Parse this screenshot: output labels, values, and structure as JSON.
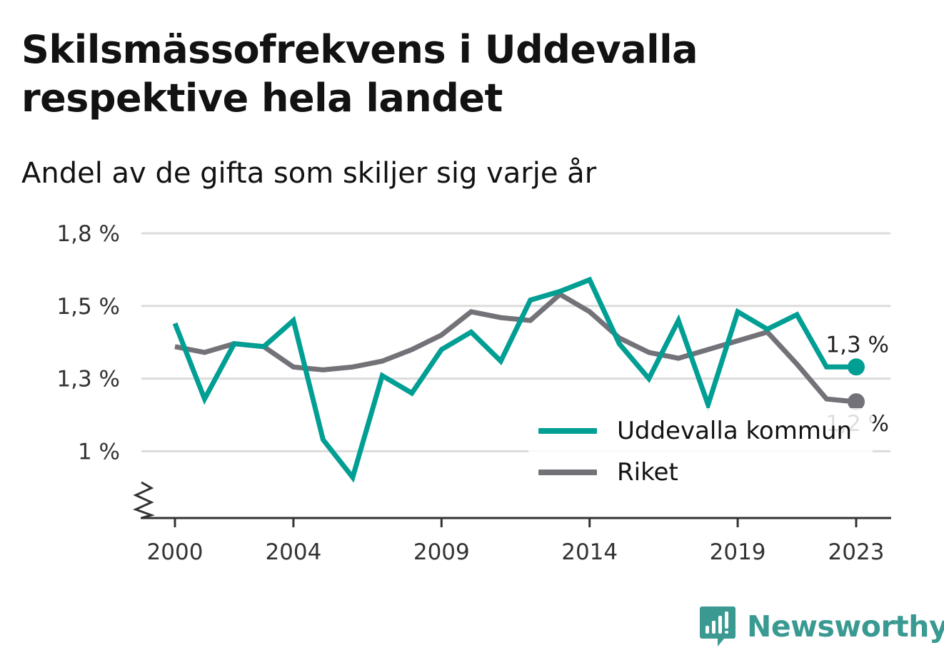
{
  "header": {
    "title": "Skilsmässofrekvens i Uddevalla respektive hela landet",
    "subtitle": "Andel av de gifta som skiljer sig varje år"
  },
  "colors": {
    "uddevalla": "#009e93",
    "riket": "#737278",
    "grid": "#dcdcdc",
    "axis": "#333333",
    "brand": "#3a9a92"
  },
  "legend": {
    "items": [
      {
        "label": "Uddevalla kommun",
        "color": "#009e93"
      },
      {
        "label": "Riket",
        "color": "#737278"
      }
    ]
  },
  "brand": {
    "name": "Newsworthy",
    "icon": "newsworthy-bar-chart-icon"
  },
  "chart_data": {
    "type": "line",
    "title": "Skilsmässofrekvens i Uddevalla respektive hela landet",
    "subtitle": "Andel av de gifta som skiljer sig varje år",
    "xlabel": "",
    "ylabel": "",
    "x": [
      2000,
      2001,
      2002,
      2003,
      2004,
      2005,
      2006,
      2007,
      2008,
      2009,
      2010,
      2011,
      2012,
      2013,
      2014,
      2015,
      2016,
      2017,
      2018,
      2019,
      2020,
      2021,
      2022,
      2023
    ],
    "x_ticks": [
      "2000",
      "2004",
      "2009",
      "2014",
      "2019",
      "2023"
    ],
    "x_tick_values": [
      2000,
      2004,
      2009,
      2014,
      2019,
      2023
    ],
    "y_ticks": [
      "1 %",
      "1,3 %",
      "1,5 %",
      "1,8 %"
    ],
    "y_tick_values": [
      1.0,
      1.25,
      1.5,
      1.75
    ],
    "ylim": [
      0.77,
      1.75
    ],
    "axis_break": true,
    "grid": true,
    "legend_position": "bottom-right",
    "series": [
      {
        "name": "Uddevalla kommun",
        "color": "#009e93",
        "values": [
          1.44,
          1.18,
          1.37,
          1.36,
          1.45,
          1.04,
          0.91,
          1.26,
          1.2,
          1.35,
          1.41,
          1.31,
          1.52,
          1.55,
          1.59,
          1.37,
          1.25,
          1.45,
          1.16,
          1.48,
          1.42,
          1.47,
          1.29,
          1.29
        ],
        "end_label": "1,3 %"
      },
      {
        "name": "Riket",
        "color": "#737278",
        "values": [
          1.36,
          1.34,
          1.37,
          1.36,
          1.29,
          1.28,
          1.29,
          1.31,
          1.35,
          1.4,
          1.48,
          1.46,
          1.45,
          1.54,
          1.48,
          1.39,
          1.34,
          1.32,
          1.35,
          1.38,
          1.41,
          1.3,
          1.18,
          1.17
        ],
        "end_label": "1,2 %"
      }
    ]
  }
}
